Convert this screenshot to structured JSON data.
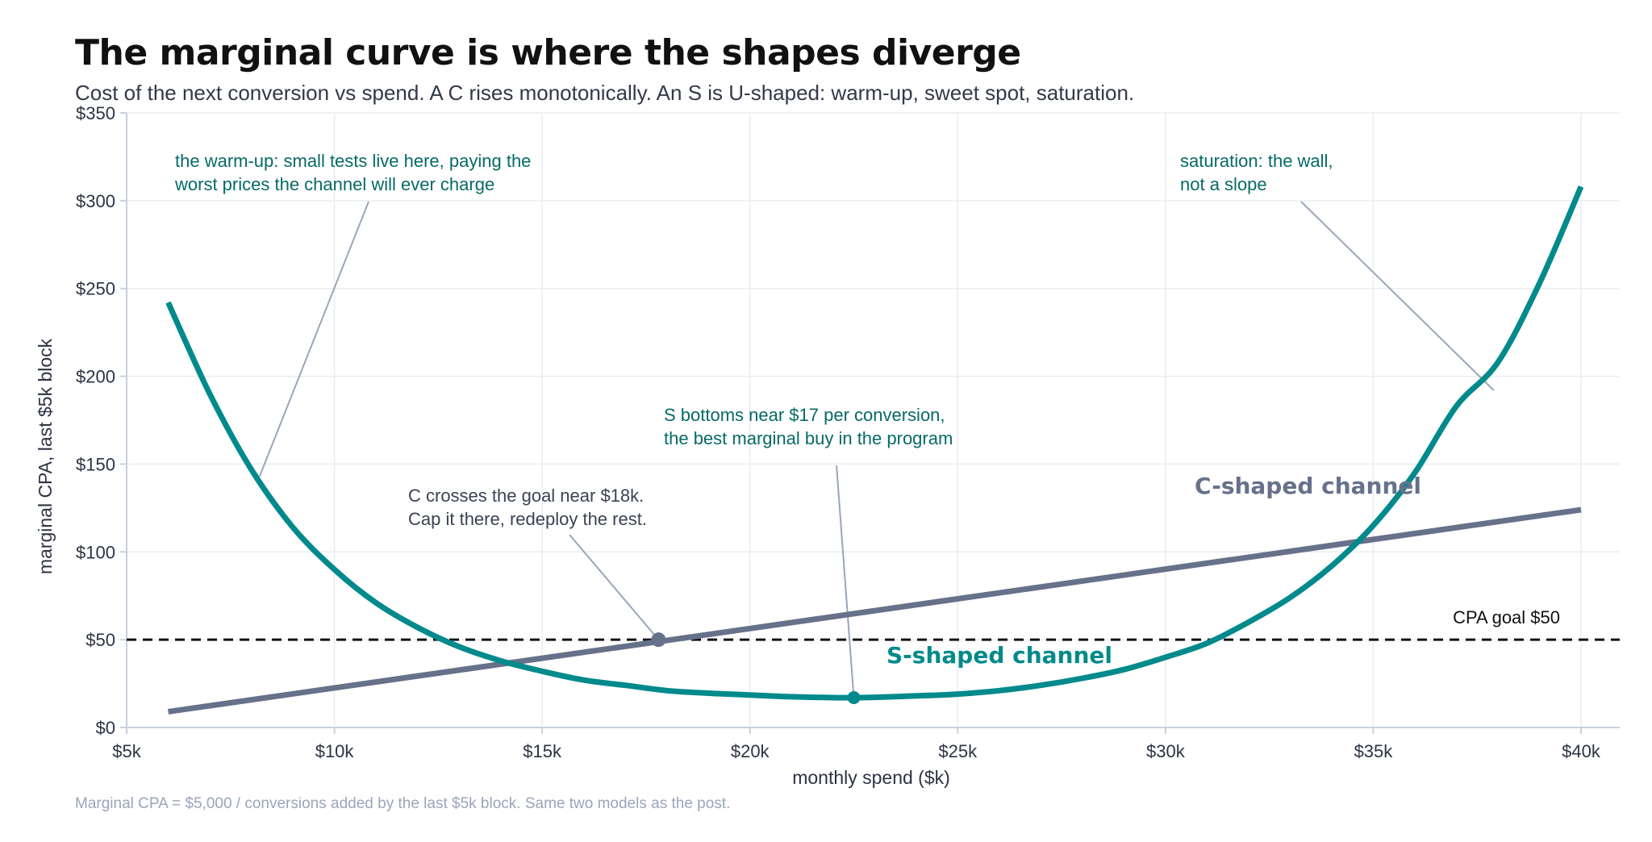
{
  "title": "The marginal curve is where the shapes diverge",
  "subtitle": "Cost of the next conversion vs spend. A C rises monotonically. An S is U-shaped: warm-up, sweet spot, saturation.",
  "footnote": "Marginal CPA = $5,000 / conversions added by the last $5k block. Same two models as the post.",
  "colors": {
    "s_series": "#008a8c",
    "c_series": "#67718a",
    "goal_line": "#111111",
    "leader": "#98a6b8",
    "grid": "#e9edf2",
    "axis": "#c8d1dc"
  },
  "chart_data": {
    "type": "line",
    "xlabel": "monthly spend ($k)",
    "ylabel": "marginal CPA, last $5k block",
    "xlim": [
      5,
      41
    ],
    "ylim": [
      0,
      350
    ],
    "x_ticks": [
      5,
      10,
      15,
      20,
      25,
      30,
      35,
      40
    ],
    "x_tick_labels": [
      "$5k",
      "$10k",
      "$15k",
      "$20k",
      "$25k",
      "$30k",
      "$35k",
      "$40k"
    ],
    "y_ticks": [
      0,
      50,
      100,
      150,
      200,
      250,
      300,
      350
    ],
    "y_tick_labels": [
      "$0",
      "$50",
      "$100",
      "$150",
      "$200",
      "$250",
      "$300",
      "$350"
    ],
    "grid": true,
    "series": [
      {
        "name": "S-shaped channel",
        "x": [
          6,
          7,
          8,
          9,
          10,
          11,
          12,
          13,
          14,
          15,
          16,
          17,
          18,
          19,
          20,
          21,
          22,
          22.5,
          23,
          24,
          25,
          26,
          27,
          28,
          29,
          30,
          31,
          32,
          33,
          34,
          35,
          36,
          37,
          38,
          39,
          40
        ],
        "values": [
          242,
          190,
          147,
          114,
          90,
          71,
          57,
          46,
          38,
          32,
          27,
          24,
          21,
          19.5,
          18.5,
          17.5,
          17,
          17,
          17.2,
          18,
          19,
          21,
          24,
          28,
          33,
          40,
          48,
          60,
          74,
          92,
          115,
          145,
          183,
          208,
          253,
          308
        ]
      },
      {
        "name": "C-shaped channel",
        "x": [
          6,
          40
        ],
        "values": [
          9,
          124
        ]
      }
    ],
    "reference_lines": [
      {
        "label": "CPA goal $50",
        "y": 50,
        "style": "dashed"
      }
    ],
    "markers": [
      {
        "series": "C-shaped channel",
        "x": 17.8,
        "y": 50
      },
      {
        "series": "S-shaped channel",
        "x": 22.5,
        "y": 17
      }
    ],
    "annotations": [
      {
        "lines": [
          "the warm-up: small tests live here, paying the",
          "worst prices the channel will ever charge"
        ],
        "target": {
          "x": 8.2,
          "y": 143
        }
      },
      {
        "lines": [
          "saturation: the wall,",
          "not a slope"
        ],
        "target": {
          "x": 37.9,
          "y": 192
        }
      },
      {
        "lines": [
          "S bottoms near $17 per conversion,",
          "the best marginal buy in the program"
        ],
        "target": {
          "x": 22.5,
          "y": 17
        }
      },
      {
        "lines": [
          "C crosses the goal near $18k.",
          "Cap it there, redeploy the rest."
        ],
        "target": {
          "x": 17.8,
          "y": 50
        }
      }
    ]
  }
}
